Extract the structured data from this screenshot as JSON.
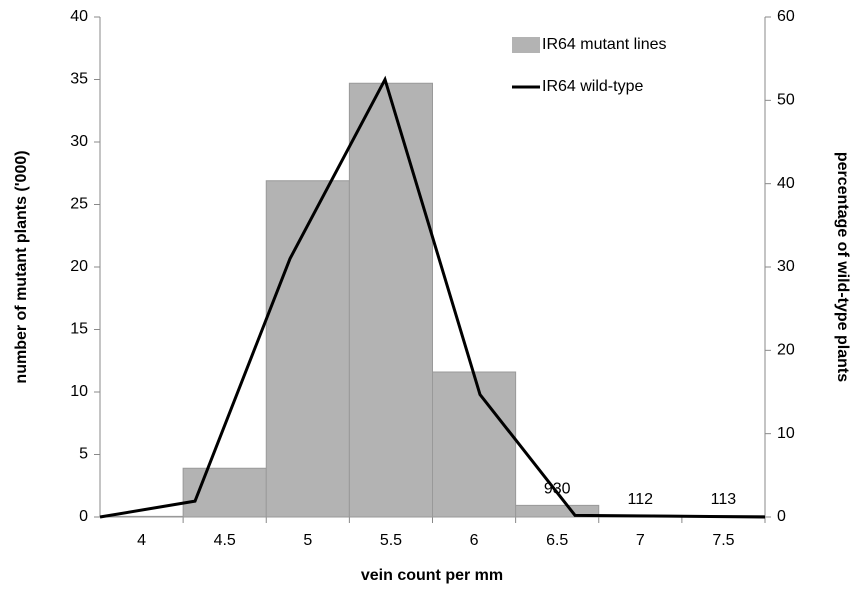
{
  "chart_data": {
    "type": "bar",
    "xlabel": "vein count per mm",
    "ylabel": "number of mutant plants ('000)",
    "y2label": "percentage of wild-type plants",
    "categories": [
      "4",
      "4.5",
      "5",
      "5.5",
      "6",
      "6.5",
      "7",
      "7.5"
    ],
    "series": [
      {
        "name": "IR64  mutant lines",
        "type": "bar",
        "color": "#b3b3b3",
        "values": [
          0.05,
          3.9,
          26.9,
          34.7,
          11.6,
          0.93,
          0.112,
          0.113
        ],
        "value_labels": [
          null,
          null,
          null,
          null,
          null,
          "930",
          "112",
          "113"
        ]
      },
      {
        "name": "IR64 wild-type",
        "type": "line",
        "axis": "y2",
        "color": "#000000",
        "values": [
          0,
          1.9,
          31,
          52.5,
          14.7,
          0.2,
          0.1,
          0
        ]
      }
    ],
    "ylim": [
      0,
      40
    ],
    "yticks": [
      0,
      5,
      10,
      15,
      20,
      25,
      30,
      35,
      40
    ],
    "y2lim": [
      0,
      60
    ],
    "y2ticks": [
      0,
      10,
      20,
      30,
      40,
      50,
      60
    ],
    "legend": "top-right"
  }
}
